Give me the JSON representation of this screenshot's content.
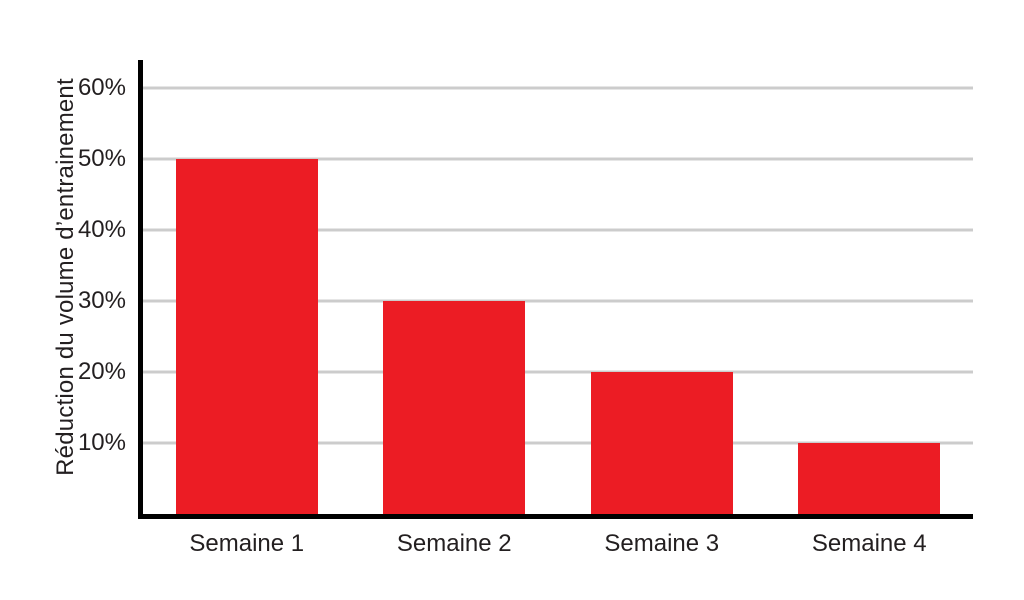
{
  "chart_data": {
    "type": "bar",
    "categories": [
      "Semaine 1",
      "Semaine 2",
      "Semaine 3",
      "Semaine 4"
    ],
    "values": [
      50,
      30,
      20,
      10
    ],
    "title": "",
    "xlabel": "",
    "ylabel": "Réduction du volume d’entrainement",
    "ylim": [
      0,
      64
    ],
    "yticks": [
      10,
      20,
      30,
      40,
      50,
      60
    ],
    "ytick_suffix": "%",
    "grid": true,
    "legend": "none",
    "bar_color": "#ec1c24",
    "gridline_color": "#cccccc",
    "axis_color": "#000000",
    "text_color": "#231f20",
    "background_color": "#ffffff"
  }
}
